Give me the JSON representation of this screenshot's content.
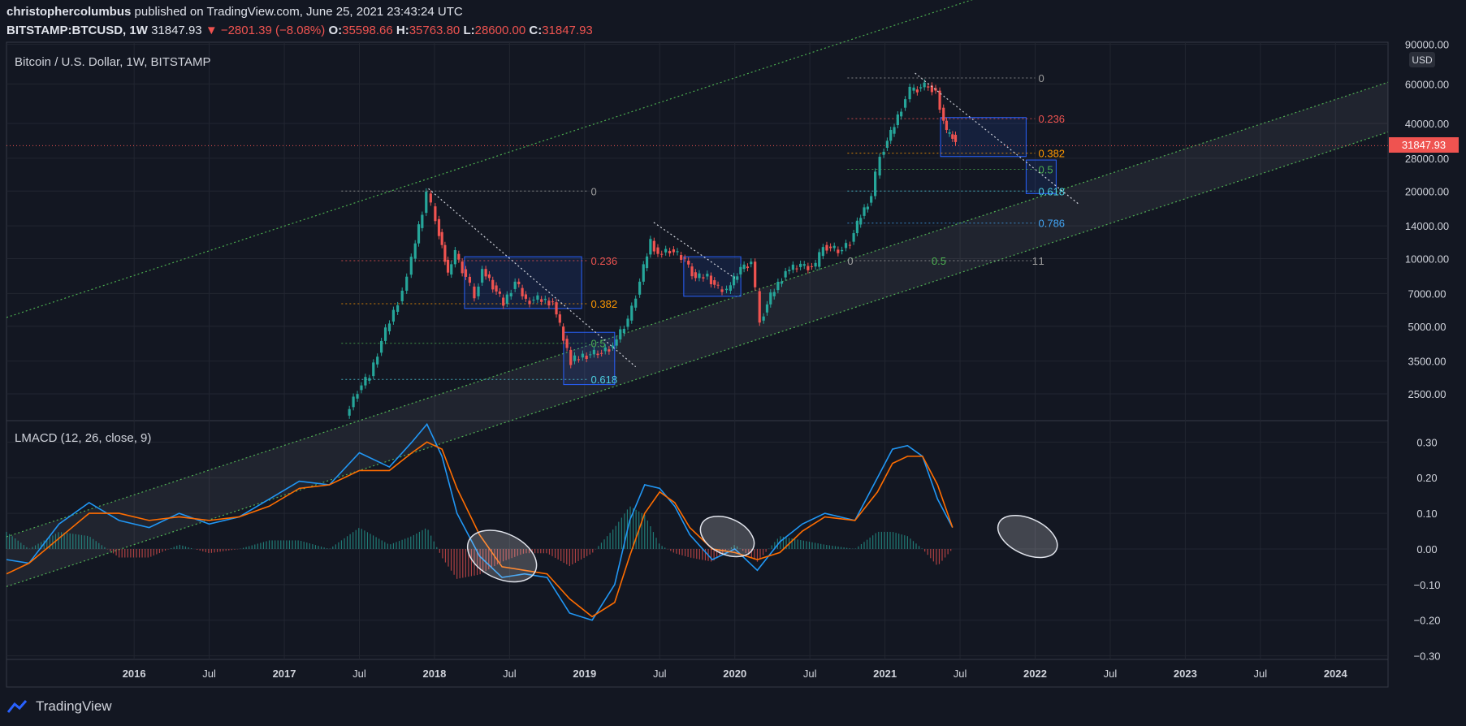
{
  "header": {
    "author": "christophercolumbus",
    "published": "published on TradingView.com, June 25, 2021 23:43:24 UTC",
    "symbol": "BITSTAMP:BTCUSD, 1W",
    "last": "31847.93",
    "change": "▼ −2801.39 (−8.08%)",
    "o_label": "O:",
    "o": "35598.66",
    "h_label": "H:",
    "h": "35763.80",
    "l_label": "L:",
    "l": "28600.00",
    "c_label": "C:",
    "c": "31847.93"
  },
  "footer": {
    "brand": "TradingView"
  },
  "colors": {
    "background": "#131722",
    "up": "#26a69a",
    "down": "#ef5350",
    "macd": "#2196f3",
    "signal": "#ff6d00",
    "channel": "#4caf50"
  },
  "chart_data": [
    {
      "type": "candlestick",
      "title": "Bitcoin / U.S. Dollar, 1W, BITSTAMP",
      "currency": "USD",
      "y_scale": "log",
      "ylim": [
        1900,
        92000
      ],
      "x_ticks": [
        "2016",
        "Jul",
        "2017",
        "Jul",
        "2018",
        "Jul",
        "2019",
        "Jul",
        "2020",
        "Jul",
        "2021",
        "Jul",
        "2022",
        "Jul",
        "2023",
        "Jul",
        "2024"
      ],
      "x_tick_dates": [
        2016.0,
        2016.5,
        2017.0,
        2017.5,
        2018.0,
        2018.5,
        2019.0,
        2019.5,
        2020.0,
        2020.5,
        2021.0,
        2021.5,
        2022.0,
        2022.5,
        2023.0,
        2023.5,
        2024.0
      ],
      "xlim": [
        2015.15,
        2024.35
      ],
      "y_ticks": [
        "90000.00",
        "60000.00",
        "40000.00",
        "28000.00",
        "20000.00",
        "14000.00",
        "10000.00",
        "7000.00",
        "5000.00",
        "3500.00",
        "2500.00"
      ],
      "y_tick_values": [
        90000,
        60000,
        40000,
        28000,
        20000,
        14000,
        10000,
        7000,
        5000,
        3500,
        2500
      ],
      "last_price": "31847.93",
      "last_price_value": 31847.93,
      "price_path": [
        [
          2017.42,
          2000
        ],
        [
          2017.5,
          2600
        ],
        [
          2017.58,
          3000
        ],
        [
          2017.66,
          4300
        ],
        [
          2017.74,
          5800
        ],
        [
          2017.8,
          7200
        ],
        [
          2017.86,
          10000
        ],
        [
          2017.93,
          16000
        ],
        [
          2017.96,
          19500
        ],
        [
          2018.02,
          15000
        ],
        [
          2018.06,
          11500
        ],
        [
          2018.1,
          8500
        ],
        [
          2018.15,
          10500
        ],
        [
          2018.22,
          8300
        ],
        [
          2018.28,
          6800
        ],
        [
          2018.33,
          9000
        ],
        [
          2018.4,
          7600
        ],
        [
          2018.47,
          6300
        ],
        [
          2018.55,
          7900
        ],
        [
          2018.62,
          6500
        ],
        [
          2018.7,
          6600
        ],
        [
          2018.8,
          6400
        ],
        [
          2018.87,
          4400
        ],
        [
          2018.92,
          3500
        ],
        [
          2019.0,
          3700
        ],
        [
          2019.1,
          3800
        ],
        [
          2019.2,
          4100
        ],
        [
          2019.3,
          5300
        ],
        [
          2019.38,
          7900
        ],
        [
          2019.45,
          12000
        ],
        [
          2019.5,
          10500
        ],
        [
          2019.58,
          11000
        ],
        [
          2019.68,
          9800
        ],
        [
          2019.75,
          8200
        ],
        [
          2019.83,
          8400
        ],
        [
          2019.9,
          7300
        ],
        [
          2019.96,
          7200
        ],
        [
          2020.05,
          9000
        ],
        [
          2020.12,
          9700
        ],
        [
          2020.18,
          5300
        ],
        [
          2020.25,
          6800
        ],
        [
          2020.35,
          8800
        ],
        [
          2020.45,
          9300
        ],
        [
          2020.55,
          9200
        ],
        [
          2020.6,
          11500
        ],
        [
          2020.7,
          10800
        ],
        [
          2020.78,
          11900
        ],
        [
          2020.85,
          15500
        ],
        [
          2020.92,
          19000
        ],
        [
          2020.98,
          29000
        ],
        [
          2021.05,
          36000
        ],
        [
          2021.12,
          47000
        ],
        [
          2021.18,
          56000
        ],
        [
          2021.25,
          58000
        ],
        [
          2021.3,
          59000
        ],
        [
          2021.35,
          56000
        ],
        [
          2021.38,
          47000
        ],
        [
          2021.42,
          36000
        ],
        [
          2021.46,
          35600
        ],
        [
          2021.48,
          31800
        ]
      ],
      "trendlines": [
        {
          "from": [
            2017.96,
            20500
          ],
          "to": [
            2019.34,
            3300
          ]
        },
        {
          "from": [
            2019.46,
            14500
          ],
          "to": [
            2020.0,
            8200
          ]
        },
        {
          "from": [
            2021.2,
            67000
          ],
          "to": [
            2022.29,
            17500
          ]
        }
      ],
      "fib_retracements": [
        {
          "levels": [
            "0",
            "0.236",
            "0.382",
            "0.5",
            "0.618"
          ],
          "values": [
            20000,
            9800,
            6300,
            4200,
            2900
          ],
          "label_colors": [
            "#9e9e9e",
            "#ef5350",
            "#ff9800",
            "#4caf50",
            "#4dd0e1"
          ],
          "from": 2017.38,
          "to": 2019.02
        },
        {
          "levels": [
            "0",
            "0.236",
            "0.382",
            "0.5",
            "0.618",
            "0.786",
            "1"
          ],
          "values": [
            63800,
            42000,
            29500,
            25000,
            20000,
            14400,
            9800
          ],
          "label_colors": [
            "#9e9e9e",
            "#ef5350",
            "#ff9800",
            "#4caf50",
            "#4dd0e1",
            "#42a5f5",
            "#9e9e9e"
          ],
          "from": 2020.75,
          "to": 2022.0
        },
        {
          "levels": [
            "0",
            "0.5",
            "1"
          ],
          "values": [
            9800,
            9800,
            9800
          ],
          "label_colors": [
            "#9e9e9e",
            "#4caf50",
            "#9e9e9e"
          ],
          "at": [
            2020.75,
            2021.31,
            2021.98
          ]
        }
      ],
      "zones": [
        {
          "x": [
            2018.2,
            2018.98
          ],
          "y": [
            6000,
            10200
          ]
        },
        {
          "x": [
            2018.86,
            2019.2
          ],
          "y": [
            2750,
            4700
          ]
        },
        {
          "x": [
            2019.66,
            2020.04
          ],
          "y": [
            6800,
            10200
          ]
        },
        {
          "x": [
            2021.37,
            2021.94
          ],
          "y": [
            28500,
            42500
          ]
        },
        {
          "x": [
            2021.94,
            2022.14
          ],
          "y": [
            19500,
            27500
          ]
        }
      ]
    },
    {
      "type": "line",
      "title": "LMACD (12, 26, close, 9)",
      "ylim": [
        -0.31,
        0.36
      ],
      "y_ticks": [
        "0.30",
        "0.20",
        "0.10",
        "0.00",
        "−0.10",
        "−0.20",
        "−0.30"
      ],
      "y_tick_values": [
        0.3,
        0.2,
        0.1,
        0.0,
        -0.1,
        -0.2,
        -0.3
      ],
      "series": [
        {
          "key": "macd",
          "color": "#2196f3",
          "x": [
            2015.15,
            2015.3,
            2015.5,
            2015.7,
            2015.9,
            2016.1,
            2016.3,
            2016.5,
            2016.7,
            2016.9,
            2017.1,
            2017.3,
            2017.5,
            2017.7,
            2017.85,
            2017.95,
            2018.05,
            2018.15,
            2018.3,
            2018.45,
            2018.6,
            2018.75,
            2018.9,
            2019.05,
            2019.2,
            2019.3,
            2019.4,
            2019.5,
            2019.6,
            2019.7,
            2019.85,
            2020.0,
            2020.15,
            2020.3,
            2020.45,
            2020.6,
            2020.8,
            2020.95,
            2021.05,
            2021.15,
            2021.25,
            2021.35,
            2021.45
          ],
          "values": [
            -0.03,
            -0.04,
            0.07,
            0.13,
            0.08,
            0.06,
            0.1,
            0.07,
            0.09,
            0.14,
            0.19,
            0.18,
            0.27,
            0.23,
            0.3,
            0.35,
            0.26,
            0.1,
            -0.02,
            -0.08,
            -0.07,
            -0.08,
            -0.18,
            -0.2,
            -0.1,
            0.08,
            0.18,
            0.17,
            0.12,
            0.04,
            -0.03,
            0.0,
            -0.06,
            0.02,
            0.07,
            0.1,
            0.08,
            0.2,
            0.28,
            0.29,
            0.26,
            0.14,
            0.06
          ]
        },
        {
          "key": "signal",
          "color": "#ff6d00",
          "x": [
            2015.15,
            2015.3,
            2015.5,
            2015.7,
            2015.9,
            2016.1,
            2016.3,
            2016.5,
            2016.7,
            2016.9,
            2017.1,
            2017.3,
            2017.5,
            2017.7,
            2017.85,
            2017.95,
            2018.05,
            2018.15,
            2018.3,
            2018.45,
            2018.6,
            2018.75,
            2018.9,
            2019.05,
            2019.2,
            2019.3,
            2019.4,
            2019.5,
            2019.6,
            2019.7,
            2019.85,
            2020.0,
            2020.15,
            2020.3,
            2020.45,
            2020.6,
            2020.8,
            2020.95,
            2021.05,
            2021.15,
            2021.25,
            2021.35,
            2021.45
          ],
          "values": [
            -0.07,
            -0.04,
            0.03,
            0.1,
            0.1,
            0.08,
            0.09,
            0.08,
            0.09,
            0.12,
            0.17,
            0.18,
            0.22,
            0.22,
            0.27,
            0.3,
            0.28,
            0.17,
            0.04,
            -0.05,
            -0.06,
            -0.07,
            -0.14,
            -0.19,
            -0.15,
            -0.02,
            0.1,
            0.16,
            0.13,
            0.06,
            0.0,
            -0.01,
            -0.03,
            -0.01,
            0.05,
            0.09,
            0.08,
            0.16,
            0.24,
            0.26,
            0.26,
            0.18,
            0.06
          ]
        }
      ],
      "annotations": [
        {
          "center": [
            2018.45,
            -0.02
          ],
          "rx": 45,
          "ry": 28
        },
        {
          "center": [
            2019.95,
            0.035
          ],
          "rx": 35,
          "ry": 22
        },
        {
          "center": [
            2021.95,
            0.035
          ],
          "rx": 39,
          "ry": 22
        }
      ]
    }
  ]
}
